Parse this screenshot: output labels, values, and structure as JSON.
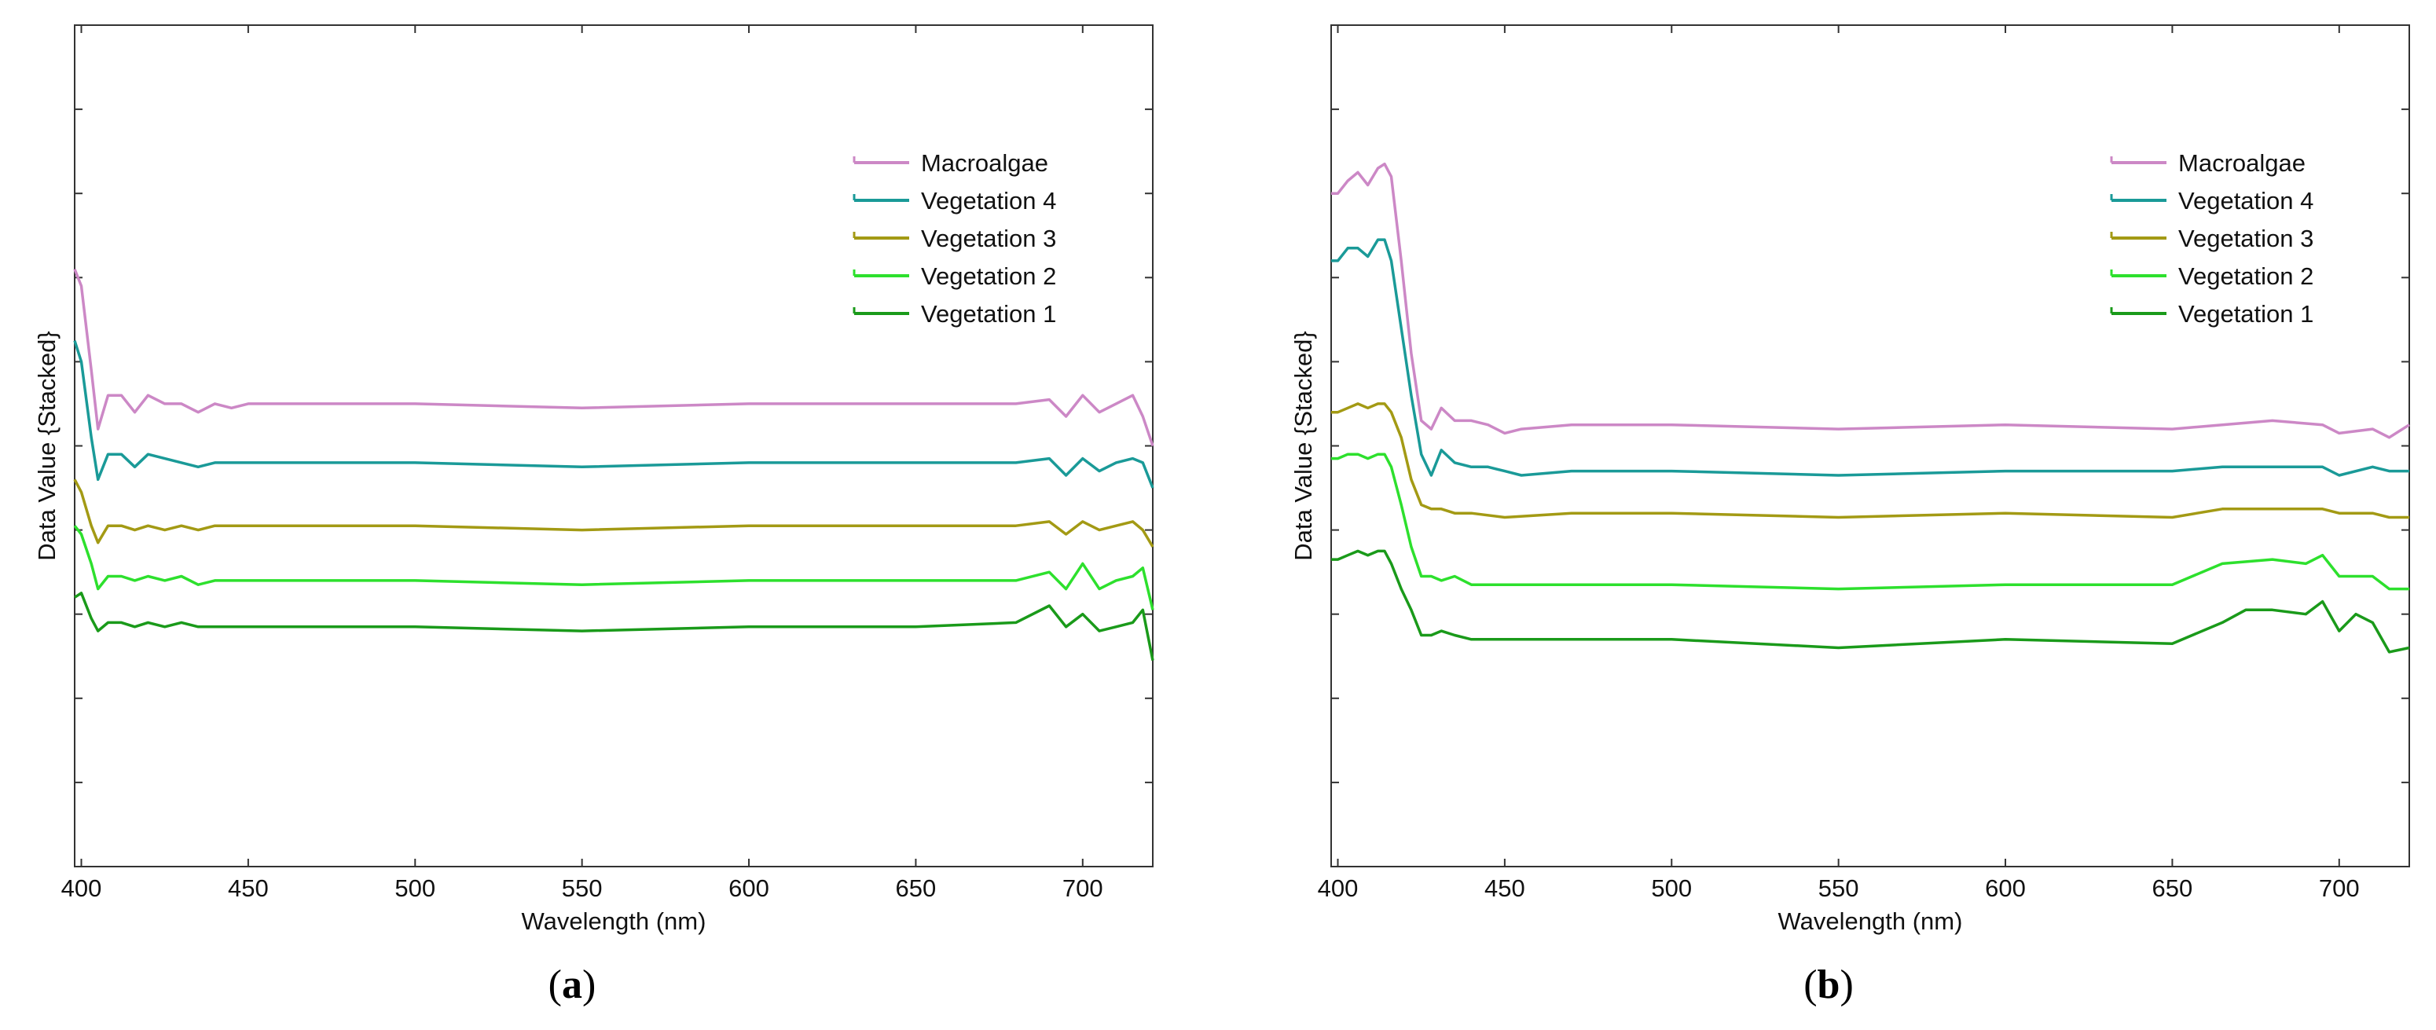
{
  "chart_data": [
    {
      "type": "line",
      "panel": "a",
      "panel_label": "a",
      "xlabel": "Wavelength (nm)",
      "ylabel": "Data Value {Stacked}",
      "xlim": [
        398,
        721
      ],
      "ylim": [
        0,
        10
      ],
      "xticks": [
        400,
        450,
        500,
        550,
        600,
        650,
        700
      ],
      "yticks": [
        1,
        2,
        3,
        4,
        5,
        6,
        7,
        8,
        9
      ],
      "legend_position": "top-right",
      "series": [
        {
          "name": "Macroalgae",
          "color": "#cc88c6",
          "marker": "pink",
          "x": [
            398,
            400,
            403,
            405,
            408,
            412,
            416,
            420,
            425,
            430,
            435,
            440,
            445,
            450,
            470,
            500,
            550,
            600,
            650,
            680,
            690,
            695,
            700,
            705,
            710,
            715,
            718,
            721
          ],
          "y": [
            7.1,
            6.9,
            5.9,
            5.2,
            5.6,
            5.6,
            5.4,
            5.6,
            5.5,
            5.5,
            5.4,
            5.5,
            5.45,
            5.5,
            5.5,
            5.5,
            5.45,
            5.5,
            5.5,
            5.5,
            5.55,
            5.35,
            5.6,
            5.4,
            5.5,
            5.6,
            5.35,
            5.0
          ]
        },
        {
          "name": "Vegetation 4",
          "color": "#1a9a98",
          "marker": "teal",
          "x": [
            398,
            400,
            403,
            405,
            408,
            412,
            416,
            420,
            425,
            430,
            435,
            440,
            450,
            470,
            500,
            550,
            600,
            650,
            680,
            690,
            695,
            700,
            705,
            710,
            715,
            718,
            721
          ],
          "y": [
            6.25,
            6.0,
            5.1,
            4.6,
            4.9,
            4.9,
            4.75,
            4.9,
            4.85,
            4.8,
            4.75,
            4.8,
            4.8,
            4.8,
            4.8,
            4.75,
            4.8,
            4.8,
            4.8,
            4.85,
            4.65,
            4.85,
            4.7,
            4.8,
            4.85,
            4.8,
            4.5
          ]
        },
        {
          "name": "Vegetation 3",
          "color": "#a39a14",
          "marker": "olive",
          "x": [
            398,
            400,
            403,
            405,
            408,
            412,
            416,
            420,
            425,
            430,
            435,
            440,
            450,
            470,
            500,
            550,
            600,
            650,
            680,
            690,
            695,
            700,
            705,
            710,
            715,
            718,
            721
          ],
          "y": [
            4.6,
            4.45,
            4.05,
            3.85,
            4.05,
            4.05,
            4.0,
            4.05,
            4.0,
            4.05,
            4.0,
            4.05,
            4.05,
            4.05,
            4.05,
            4.0,
            4.05,
            4.05,
            4.05,
            4.1,
            3.95,
            4.1,
            4.0,
            4.05,
            4.1,
            4.0,
            3.8
          ]
        },
        {
          "name": "Vegetation 2",
          "color": "#2de02d",
          "marker": "lime",
          "x": [
            398,
            400,
            403,
            405,
            408,
            412,
            416,
            420,
            425,
            430,
            435,
            440,
            450,
            470,
            500,
            550,
            600,
            650,
            680,
            690,
            695,
            700,
            705,
            710,
            715,
            718,
            721
          ],
          "y": [
            4.05,
            3.95,
            3.6,
            3.3,
            3.45,
            3.45,
            3.4,
            3.45,
            3.4,
            3.45,
            3.35,
            3.4,
            3.4,
            3.4,
            3.4,
            3.35,
            3.4,
            3.4,
            3.4,
            3.5,
            3.3,
            3.6,
            3.3,
            3.4,
            3.45,
            3.55,
            3.05
          ]
        },
        {
          "name": "Vegetation 1",
          "color": "#1a9a1a",
          "marker": "green",
          "x": [
            398,
            400,
            403,
            405,
            408,
            412,
            416,
            420,
            425,
            430,
            435,
            440,
            450,
            470,
            500,
            550,
            600,
            650,
            680,
            690,
            695,
            700,
            705,
            710,
            715,
            718,
            721
          ],
          "y": [
            3.2,
            3.25,
            2.95,
            2.8,
            2.9,
            2.9,
            2.85,
            2.9,
            2.85,
            2.9,
            2.85,
            2.85,
            2.85,
            2.85,
            2.85,
            2.8,
            2.85,
            2.85,
            2.9,
            3.1,
            2.85,
            3.0,
            2.8,
            2.85,
            2.9,
            3.05,
            2.45
          ]
        }
      ]
    },
    {
      "type": "line",
      "panel": "b",
      "panel_label": "b",
      "xlabel": "Wavelength (nm)",
      "ylabel": "Data Value {Stacked}",
      "xlim": [
        398,
        721
      ],
      "ylim": [
        0,
        10
      ],
      "xticks": [
        400,
        450,
        500,
        550,
        600,
        650,
        700
      ],
      "yticks": [
        1,
        2,
        3,
        4,
        5,
        6,
        7,
        8,
        9
      ],
      "legend_position": "top-right",
      "series": [
        {
          "name": "Macroalgae",
          "color": "#cc88c6",
          "marker": "pink",
          "x": [
            398,
            400,
            403,
            406,
            409,
            412,
            414,
            416,
            419,
            422,
            425,
            428,
            431,
            435,
            440,
            445,
            450,
            455,
            470,
            500,
            550,
            600,
            650,
            665,
            680,
            695,
            700,
            710,
            715,
            721
          ],
          "y": [
            8.0,
            8.0,
            8.15,
            8.25,
            8.1,
            8.3,
            8.35,
            8.2,
            7.2,
            6.1,
            5.3,
            5.2,
            5.45,
            5.3,
            5.3,
            5.25,
            5.15,
            5.2,
            5.25,
            5.25,
            5.2,
            5.25,
            5.2,
            5.25,
            5.3,
            5.25,
            5.15,
            5.2,
            5.1,
            5.25
          ]
        },
        {
          "name": "Vegetation 4",
          "color": "#1a9a98",
          "marker": "teal",
          "x": [
            398,
            400,
            403,
            406,
            409,
            412,
            414,
            416,
            419,
            422,
            425,
            428,
            431,
            435,
            440,
            445,
            450,
            455,
            470,
            500,
            550,
            600,
            650,
            665,
            680,
            695,
            700,
            710,
            715,
            721
          ],
          "y": [
            7.2,
            7.2,
            7.35,
            7.35,
            7.25,
            7.45,
            7.45,
            7.2,
            6.4,
            5.6,
            4.9,
            4.65,
            4.95,
            4.8,
            4.75,
            4.75,
            4.7,
            4.65,
            4.7,
            4.7,
            4.65,
            4.7,
            4.7,
            4.75,
            4.75,
            4.75,
            4.65,
            4.75,
            4.7,
            4.7
          ]
        },
        {
          "name": "Vegetation 3",
          "color": "#a39a14",
          "marker": "olive",
          "x": [
            398,
            400,
            403,
            406,
            409,
            412,
            414,
            416,
            419,
            422,
            425,
            428,
            431,
            435,
            440,
            450,
            470,
            500,
            550,
            600,
            650,
            665,
            680,
            695,
            700,
            710,
            715,
            721
          ],
          "y": [
            5.4,
            5.4,
            5.45,
            5.5,
            5.45,
            5.5,
            5.5,
            5.4,
            5.1,
            4.6,
            4.3,
            4.25,
            4.25,
            4.2,
            4.2,
            4.15,
            4.2,
            4.2,
            4.15,
            4.2,
            4.15,
            4.25,
            4.25,
            4.25,
            4.2,
            4.2,
            4.15,
            4.15
          ]
        },
        {
          "name": "Vegetation 2",
          "color": "#2de02d",
          "marker": "lime",
          "x": [
            398,
            400,
            403,
            406,
            409,
            412,
            414,
            416,
            419,
            422,
            425,
            428,
            431,
            435,
            440,
            450,
            470,
            500,
            550,
            600,
            650,
            665,
            680,
            690,
            695,
            700,
            710,
            715,
            721
          ],
          "y": [
            4.85,
            4.85,
            4.9,
            4.9,
            4.85,
            4.9,
            4.9,
            4.75,
            4.3,
            3.8,
            3.45,
            3.45,
            3.4,
            3.45,
            3.35,
            3.35,
            3.35,
            3.35,
            3.3,
            3.35,
            3.35,
            3.6,
            3.65,
            3.6,
            3.7,
            3.45,
            3.45,
            3.3,
            3.3
          ]
        },
        {
          "name": "Vegetation 1",
          "color": "#1a9a1a",
          "marker": "green",
          "x": [
            398,
            400,
            403,
            406,
            409,
            412,
            414,
            416,
            419,
            422,
            425,
            428,
            431,
            435,
            440,
            450,
            470,
            500,
            550,
            600,
            650,
            665,
            672,
            680,
            690,
            695,
            700,
            705,
            710,
            715,
            721
          ],
          "y": [
            3.65,
            3.65,
            3.7,
            3.75,
            3.7,
            3.75,
            3.75,
            3.6,
            3.3,
            3.05,
            2.75,
            2.75,
            2.8,
            2.75,
            2.7,
            2.7,
            2.7,
            2.7,
            2.6,
            2.7,
            2.65,
            2.9,
            3.05,
            3.05,
            3.0,
            3.15,
            2.8,
            3.0,
            2.9,
            2.55,
            2.6
          ]
        }
      ]
    }
  ]
}
